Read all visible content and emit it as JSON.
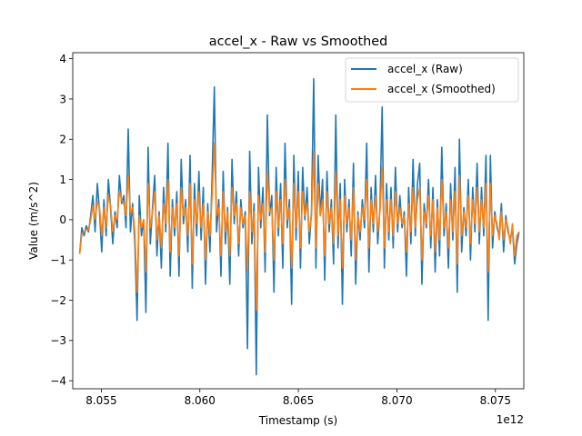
{
  "chart_data": {
    "type": "line",
    "title": "accel_x - Raw vs Smoothed",
    "xlabel": "Timestamp (s)",
    "ylabel": "Value (m/s^2)",
    "x_offset_label": "1e12",
    "xlim": [
      8.05355,
      8.07644
    ],
    "ylim": [
      -4.2,
      4.15
    ],
    "x_ticks": [
      8.055,
      8.06,
      8.065,
      8.07,
      8.075
    ],
    "x_tick_labels": [
      "8.055",
      "8.060",
      "8.065",
      "8.070",
      "8.075"
    ],
    "y_ticks": [
      -4,
      -3,
      -2,
      -1,
      0,
      1,
      2,
      3,
      4
    ],
    "y_tick_labels": [
      "−4",
      "−3",
      "−2",
      "−1",
      "0",
      "1",
      "2",
      "3",
      "4"
    ],
    "legend_position": "top-right",
    "grid": false,
    "x_start": 8.0539,
    "x_end": 8.0762,
    "series": [
      {
        "name": "accel_x (Raw)",
        "color": "#1f77b4",
        "values": [
          -0.85,
          -0.2,
          -0.4,
          -0.15,
          -0.3,
          0.1,
          0.6,
          -0.3,
          0.9,
          0.2,
          -0.8,
          0.5,
          -0.4,
          1.0,
          0.3,
          -0.6,
          0.2,
          -0.2,
          1.1,
          0.4,
          0.6,
          -0.2,
          2.25,
          -0.3,
          0.4,
          -0.6,
          -2.5,
          0.6,
          -0.4,
          0.0,
          -2.3,
          1.8,
          -0.6,
          0.3,
          1.1,
          -0.9,
          0.2,
          -1.2,
          0.8,
          -0.3,
          1.9,
          -1.4,
          0.5,
          -0.4,
          0.7,
          -1.4,
          1.5,
          -0.1,
          0.5,
          -0.8,
          1.6,
          -1.7,
          0.9,
          -0.4,
          1.2,
          -0.5,
          0.8,
          -1.6,
          0.4,
          -0.8,
          1.1,
          3.3,
          -0.3,
          0.5,
          -1.4,
          1.2,
          -0.6,
          0.3,
          -1.6,
          1.5,
          -0.1,
          0.7,
          -0.9,
          0.5,
          -0.2,
          0.2,
          -3.2,
          1.7,
          -0.6,
          0.4,
          -3.85,
          1.3,
          -0.2,
          0.8,
          -1.3,
          2.6,
          0.1,
          0.6,
          -1.8,
          1.3,
          -0.4,
          0.9,
          -1.2,
          1.9,
          -0.2,
          0.5,
          -2.1,
          1.6,
          -0.5,
          1.2,
          -1.2,
          1.3,
          0.0,
          0.8,
          -0.6,
          0.2,
          3.5,
          -1.2,
          1.6,
          0.1,
          1.0,
          -1.5,
          1.2,
          -0.3,
          0.5,
          -1.1,
          2.6,
          -0.7,
          0.9,
          -2.1,
          1.0,
          -0.3,
          0.5,
          -0.9,
          1.4,
          -1.6,
          0.2,
          -0.5,
          0.5,
          -0.2,
          1.9,
          -1.3,
          0.8,
          -0.3,
          1.1,
          -0.6,
          0.3,
          2.8,
          -1.2,
          0.9,
          -0.5,
          0.8,
          -0.7,
          1.3,
          -0.3,
          0.6,
          -0.2,
          0.2,
          -1.4,
          0.8,
          -0.6,
          1.5,
          -0.4,
          0.9,
          1.4,
          -1.6,
          0.4,
          -0.2,
          1.0,
          -0.7,
          0.8,
          -1.3,
          0.5,
          -0.9,
          1.8,
          -0.4,
          0.4,
          -1.2,
          0.9,
          -0.5,
          1.3,
          -1.8,
          2.0,
          -0.8,
          0.3,
          -0.4,
          1.0,
          -1.0,
          0.8,
          -0.3,
          1.4,
          -0.6,
          0.8,
          -0.4,
          1.6,
          -2.5,
          1.6,
          -0.7,
          0.2,
          -0.2,
          -0.4,
          0.4,
          -0.8,
          0.1,
          -0.3,
          -0.5,
          -0.2,
          -1.1,
          -0.6,
          -0.3
        ]
      },
      {
        "name": "accel_x (Smoothed)",
        "color": "#ff7f0e",
        "values": [
          -0.85,
          -0.35,
          -0.3,
          -0.25,
          -0.25,
          0.0,
          0.35,
          0.0,
          0.45,
          0.3,
          -0.4,
          0.3,
          -0.2,
          0.6,
          0.35,
          -0.3,
          0.1,
          0.0,
          0.7,
          0.5,
          0.4,
          0.1,
          1.1,
          0.2,
          0.3,
          -0.3,
          -1.8,
          0.1,
          -0.2,
          0.0,
          -1.3,
          0.9,
          -0.2,
          0.2,
          0.7,
          -0.5,
          0.1,
          -0.7,
          0.4,
          -0.1,
          1.0,
          -0.8,
          0.3,
          -0.2,
          0.4,
          -0.9,
          0.8,
          0.1,
          0.3,
          -0.4,
          0.9,
          -1.1,
          0.5,
          -0.1,
          0.7,
          -0.2,
          0.4,
          -1.0,
          0.2,
          -0.4,
          0.6,
          1.9,
          0.1,
          0.3,
          -0.9,
          0.7,
          -0.3,
          0.2,
          -0.9,
          0.8,
          0.1,
          0.4,
          -0.6,
          0.3,
          -0.1,
          0.1,
          -1.3,
          0.7,
          -0.3,
          0.2,
          -2.25,
          0.6,
          0.0,
          0.4,
          -0.8,
          1.2,
          0.2,
          0.3,
          -1.0,
          0.7,
          -0.2,
          0.5,
          -0.6,
          1.0,
          0.0,
          0.3,
          -1.2,
          0.9,
          -0.2,
          0.7,
          -0.7,
          0.7,
          0.1,
          0.4,
          -0.3,
          0.1,
          1.7,
          -0.7,
          0.9,
          0.1,
          0.5,
          -0.9,
          0.7,
          -0.1,
          0.3,
          -0.6,
          1.2,
          -0.4,
          0.5,
          -1.2,
          0.6,
          -0.1,
          0.3,
          -0.5,
          0.8,
          -1.0,
          0.1,
          -0.3,
          0.3,
          0.0,
          1.0,
          -0.7,
          0.5,
          -0.1,
          0.6,
          -0.3,
          0.2,
          1.3,
          -0.7,
          0.5,
          -0.3,
          0.5,
          -0.4,
          0.7,
          -0.1,
          0.3,
          -0.1,
          0.1,
          -0.8,
          0.4,
          -0.3,
          0.8,
          -0.2,
          0.5,
          0.8,
          -1.0,
          0.2,
          -0.1,
          0.6,
          -0.4,
          0.5,
          -0.8,
          0.3,
          -0.5,
          1.0,
          -0.2,
          0.2,
          -0.7,
          0.5,
          -0.3,
          0.7,
          -1.1,
          1.1,
          -0.4,
          0.2,
          -0.2,
          0.6,
          -0.6,
          0.5,
          -0.1,
          0.8,
          -0.3,
          0.5,
          -0.2,
          0.9,
          -1.3,
          0.9,
          -0.4,
          0.1,
          -0.1,
          -0.5,
          0.2,
          -0.5,
          0.0,
          -0.2,
          -0.6,
          -0.1,
          -0.9,
          -0.4,
          -0.3
        ]
      }
    ]
  }
}
